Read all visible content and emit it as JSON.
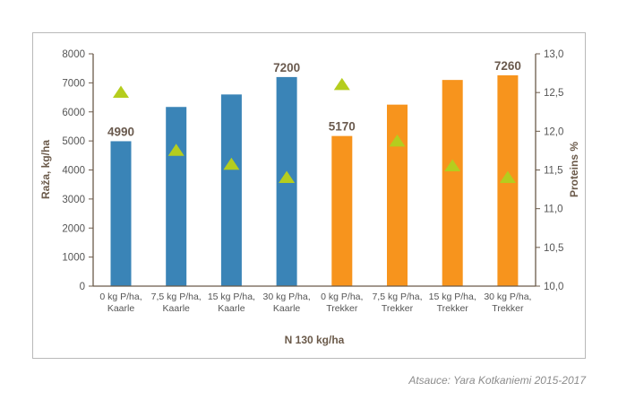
{
  "chart_data": {
    "type": "bar",
    "categories": [
      [
        "0 kg P/ha,",
        "Kaarle"
      ],
      [
        "7,5 kg P/ha,",
        "Kaarle"
      ],
      [
        "15 kg P/ha,",
        "Kaarle"
      ],
      [
        "30 kg P/ha,",
        "Kaarle"
      ],
      [
        "0 kg P/ha,",
        "Trekker"
      ],
      [
        "7,5 kg P/ha,",
        "Trekker"
      ],
      [
        "15 kg P/ha,",
        "Trekker"
      ],
      [
        "30 kg P/ha,",
        "Trekker"
      ]
    ],
    "series": [
      {
        "type": "bar",
        "axis": "left",
        "values": [
          4990,
          6170,
          6600,
          7200,
          5170,
          6250,
          7100,
          7260
        ],
        "colors": [
          "#3a84b7",
          "#3a84b7",
          "#3a84b7",
          "#3a84b7",
          "#f7941d",
          "#f7941d",
          "#f7941d",
          "#f7941d"
        ]
      },
      {
        "type": "scatter",
        "marker": "triangle",
        "axis": "right",
        "values": [
          12.5,
          11.75,
          11.57,
          11.4,
          12.6,
          11.87,
          11.55,
          11.4
        ],
        "color": "#b5cd1e"
      }
    ],
    "data_labels": [
      {
        "index": 0,
        "text": "4990"
      },
      {
        "index": 3,
        "text": "7200"
      },
      {
        "index": 4,
        "text": "5170"
      },
      {
        "index": 7,
        "text": "7260"
      }
    ],
    "xlabel": "N 130 kg/ha",
    "ylabel": "Raža, kg/ha",
    "y2label": "Proteins %",
    "ylim": [
      0,
      8000
    ],
    "yticks": [
      "0",
      "1000",
      "2000",
      "3000",
      "4000",
      "5000",
      "6000",
      "7000",
      "8000"
    ],
    "y2lim": [
      10.0,
      13.0
    ],
    "y2ticks": [
      "10,0",
      "10,5",
      "11,0",
      "11,5",
      "12,0",
      "12,5",
      "13,0"
    ],
    "grid": false,
    "legend": "none"
  },
  "source": "Atsauce: Yara Kotkaniemi 2015-2017"
}
